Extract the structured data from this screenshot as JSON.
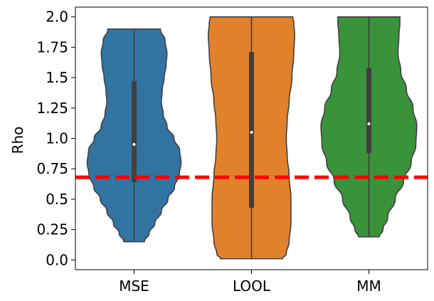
{
  "chart_data": {
    "type": "violin",
    "title": "",
    "xlabel": "",
    "ylabel": "Rho",
    "ylim": [
      -0.08,
      2.08
    ],
    "yticks": [
      0.0,
      0.25,
      0.5,
      0.75,
      1.0,
      1.25,
      1.5,
      1.75,
      2.0
    ],
    "ytick_labels": [
      "0.0",
      "0.25",
      "0.5",
      "0.75",
      "1.0",
      "1.25",
      "1.5",
      "1.75",
      "2.0"
    ],
    "grid": false,
    "reference_line": {
      "y": 0.68,
      "color": "#ff0000",
      "style": "dashed"
    },
    "categories": [
      "MSE",
      "LOOL",
      "MM"
    ],
    "series": [
      {
        "color": "#3274a1",
        "min": 0.15,
        "q1": 0.64,
        "median": 0.95,
        "q3": 1.47,
        "max": 1.9,
        "density": [
          [
            0.15,
            0.22
          ],
          [
            0.22,
            0.32
          ],
          [
            0.3,
            0.44
          ],
          [
            0.4,
            0.58
          ],
          [
            0.5,
            0.72
          ],
          [
            0.6,
            0.86
          ],
          [
            0.7,
            0.96
          ],
          [
            0.8,
            1.0
          ],
          [
            0.9,
            0.97
          ],
          [
            1.0,
            0.85
          ],
          [
            1.1,
            0.7
          ],
          [
            1.2,
            0.62
          ],
          [
            1.3,
            0.58
          ],
          [
            1.4,
            0.6
          ],
          [
            1.5,
            0.64
          ],
          [
            1.6,
            0.68
          ],
          [
            1.7,
            0.7
          ],
          [
            1.8,
            0.66
          ],
          [
            1.9,
            0.56
          ]
        ]
      },
      {
        "color": "#e1812c",
        "min": 0.01,
        "q1": 0.43,
        "median": 1.05,
        "q3": 1.71,
        "max": 2.0,
        "density": [
          [
            0.01,
            0.66
          ],
          [
            0.05,
            0.74
          ],
          [
            0.15,
            0.8
          ],
          [
            0.3,
            0.84
          ],
          [
            0.5,
            0.84
          ],
          [
            0.7,
            0.8
          ],
          [
            0.85,
            0.76
          ],
          [
            1.0,
            0.74
          ],
          [
            1.15,
            0.76
          ],
          [
            1.3,
            0.8
          ],
          [
            1.5,
            0.86
          ],
          [
            1.7,
            0.9
          ],
          [
            1.85,
            0.92
          ],
          [
            1.95,
            0.9
          ],
          [
            2.0,
            0.88
          ]
        ]
      },
      {
        "color": "#3a923a",
        "min": 0.19,
        "q1": 0.88,
        "median": 1.12,
        "q3": 1.58,
        "max": 2.0,
        "density": [
          [
            0.19,
            0.22
          ],
          [
            0.25,
            0.3
          ],
          [
            0.35,
            0.4
          ],
          [
            0.5,
            0.56
          ],
          [
            0.65,
            0.74
          ],
          [
            0.8,
            0.9
          ],
          [
            0.95,
            1.0
          ],
          [
            1.1,
            1.02
          ],
          [
            1.25,
            0.94
          ],
          [
            1.4,
            0.8
          ],
          [
            1.55,
            0.68
          ],
          [
            1.7,
            0.62
          ],
          [
            1.85,
            0.64
          ],
          [
            1.95,
            0.66
          ],
          [
            2.0,
            0.66
          ]
        ]
      }
    ]
  }
}
